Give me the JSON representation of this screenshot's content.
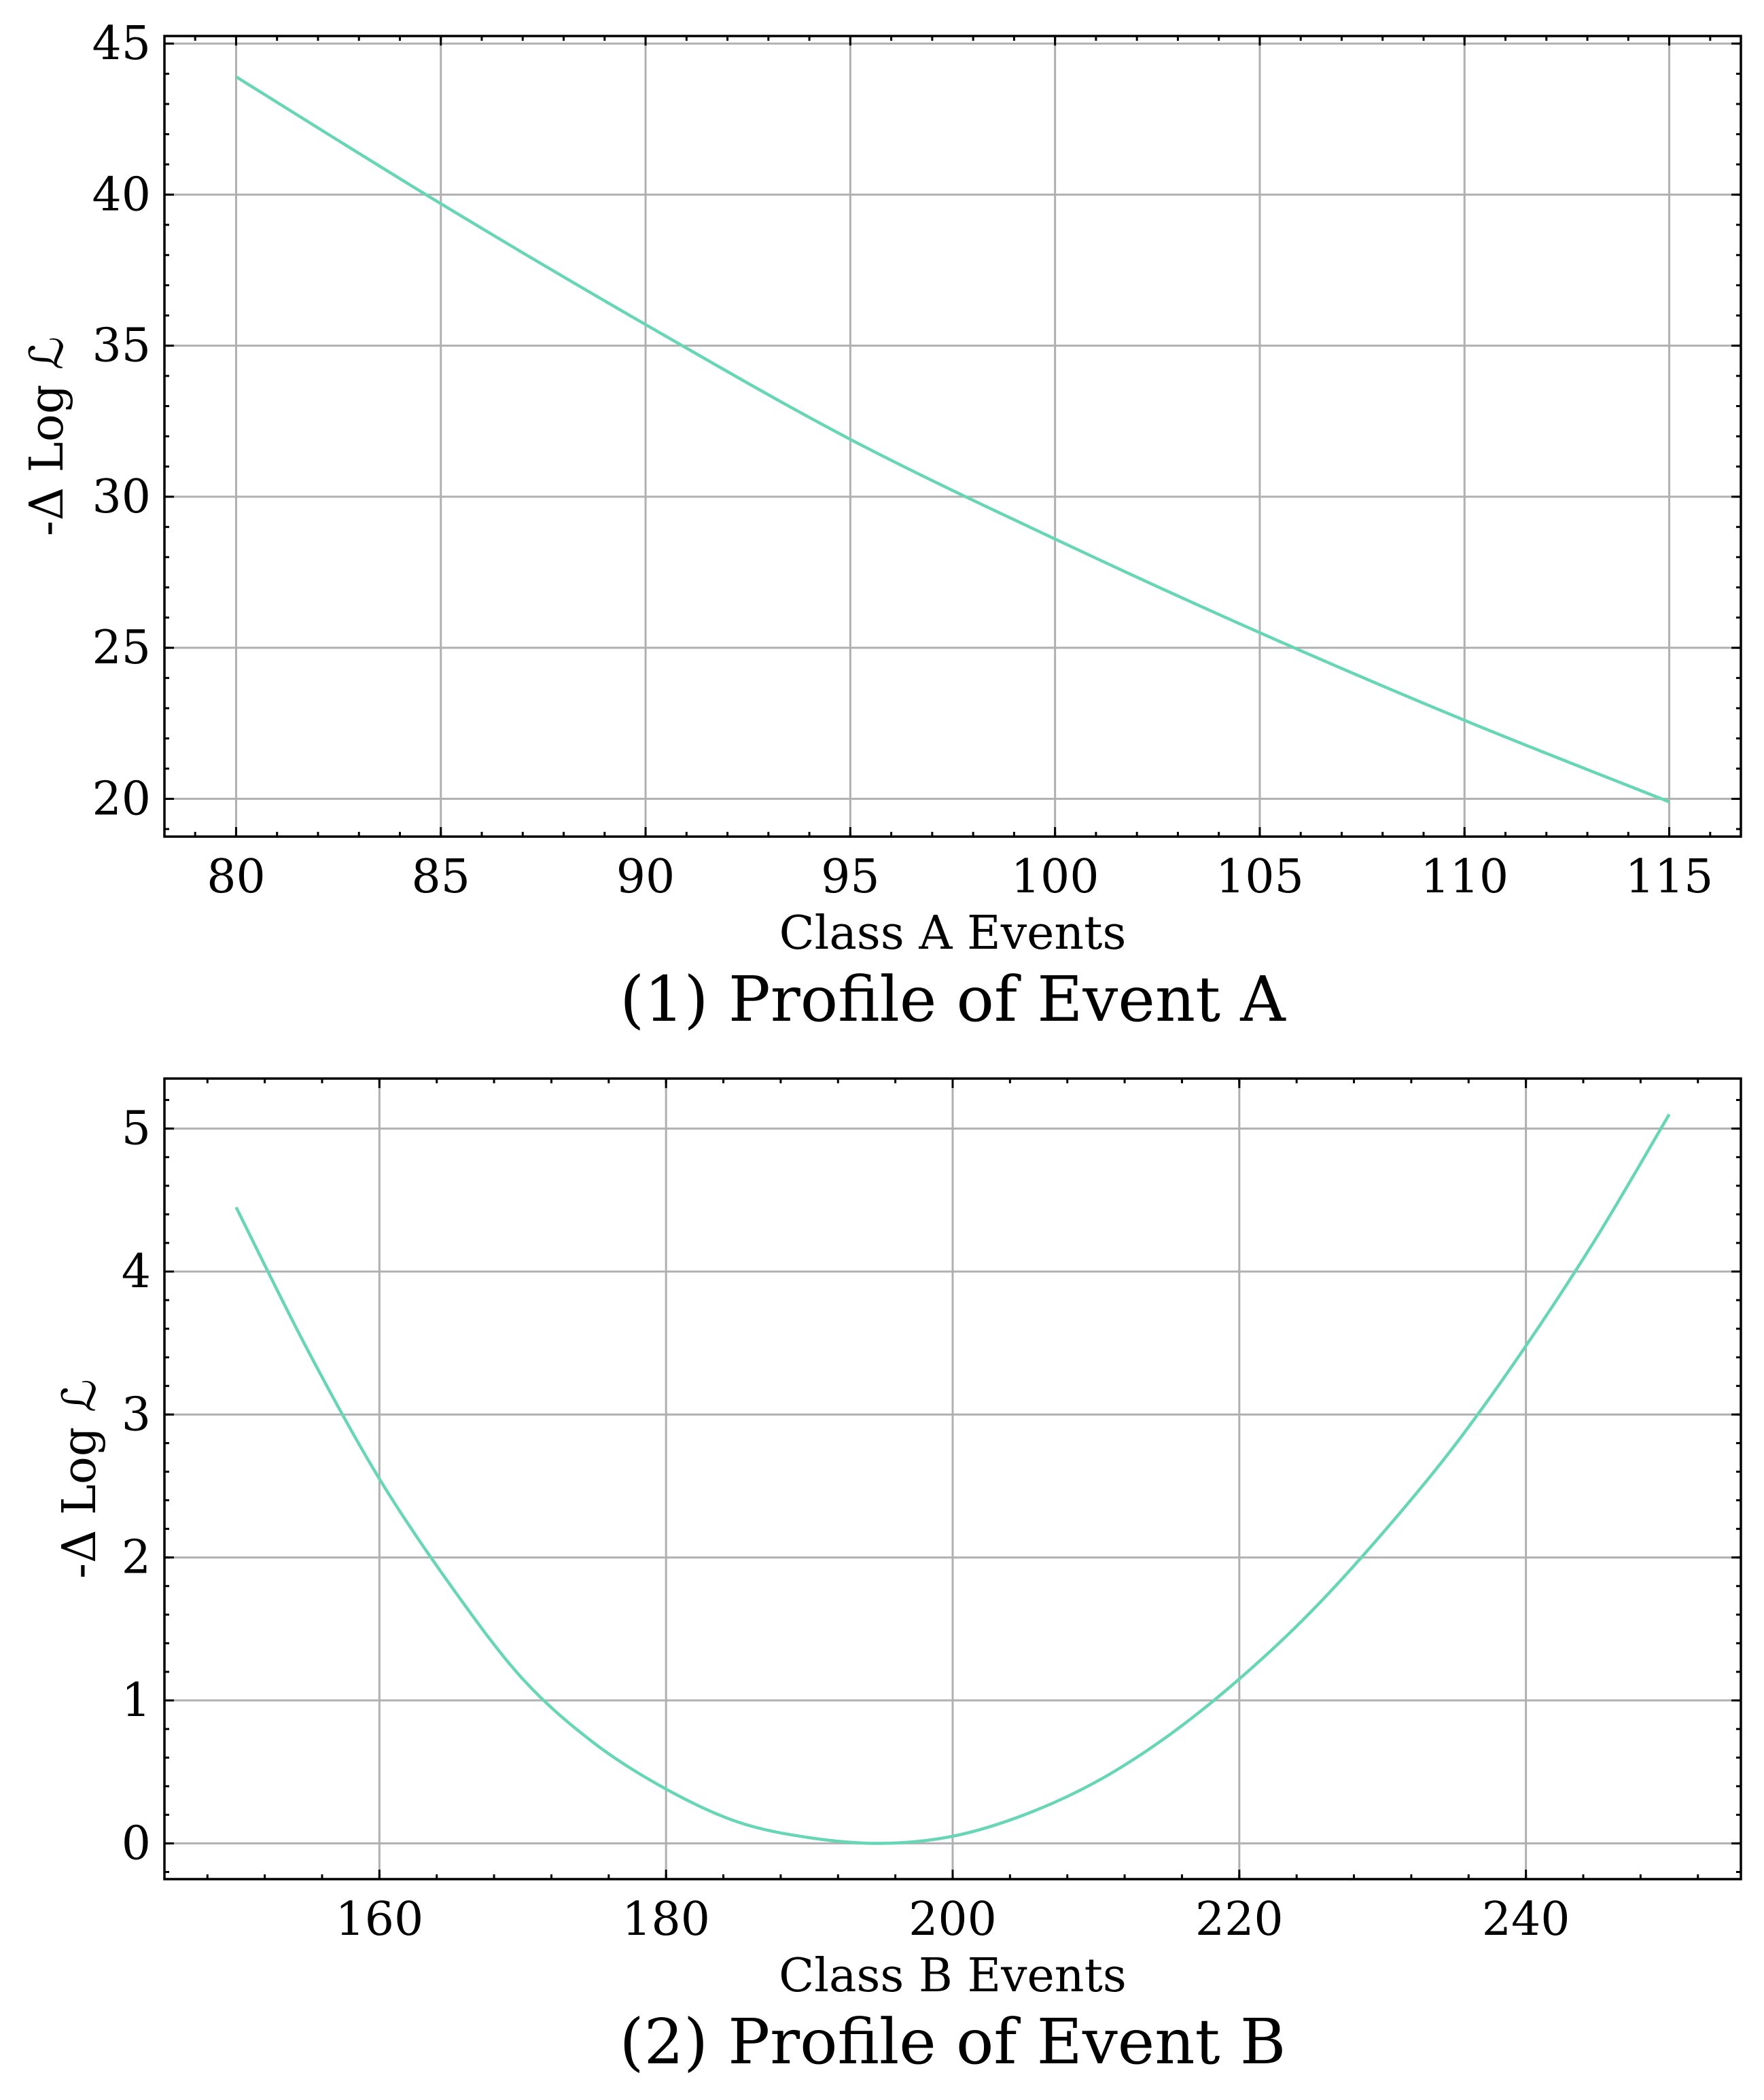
{
  "colors": {
    "series": "#66d6b4"
  },
  "chart_data": [
    {
      "type": "line",
      "subtitle": "(1) Profile of Event A",
      "xlabel": "Class A Events",
      "ylabel": "-Δ Log ℒ",
      "xlim": [
        78.25,
        116.75
      ],
      "ylim": [
        18.75,
        45.25
      ],
      "xticks": [
        80,
        85,
        90,
        95,
        100,
        105,
        110,
        115
      ],
      "yticks": [
        20,
        25,
        30,
        35,
        40,
        45
      ],
      "grid": true,
      "series": [
        {
          "x": [
            80,
            85,
            90,
            95,
            100,
            105,
            110,
            115
          ],
          "y": [
            43.9,
            39.7,
            35.7,
            31.9,
            28.6,
            25.5,
            22.6,
            19.9
          ]
        }
      ]
    },
    {
      "type": "line",
      "subtitle": "(2) Profile of Event B",
      "xlabel": "Class B Events",
      "ylabel": "-Δ Log ℒ",
      "xlim": [
        145,
        255
      ],
      "ylim": [
        -0.25,
        5.35
      ],
      "xticks": [
        160,
        180,
        200,
        220,
        240
      ],
      "yticks": [
        0,
        1,
        2,
        3,
        4,
        5
      ],
      "grid": true,
      "series": [
        {
          "x": [
            150,
            155,
            160,
            165,
            170,
            175,
            180,
            185,
            190,
            195,
            200,
            205,
            210,
            215,
            220,
            225,
            230,
            235,
            240,
            245,
            250
          ],
          "y": [
            4.45,
            3.45,
            2.55,
            1.8,
            1.15,
            0.7,
            0.38,
            0.15,
            0.04,
            0.0,
            0.05,
            0.2,
            0.43,
            0.75,
            1.15,
            1.62,
            2.17,
            2.78,
            3.48,
            4.25,
            5.1
          ]
        }
      ]
    }
  ]
}
